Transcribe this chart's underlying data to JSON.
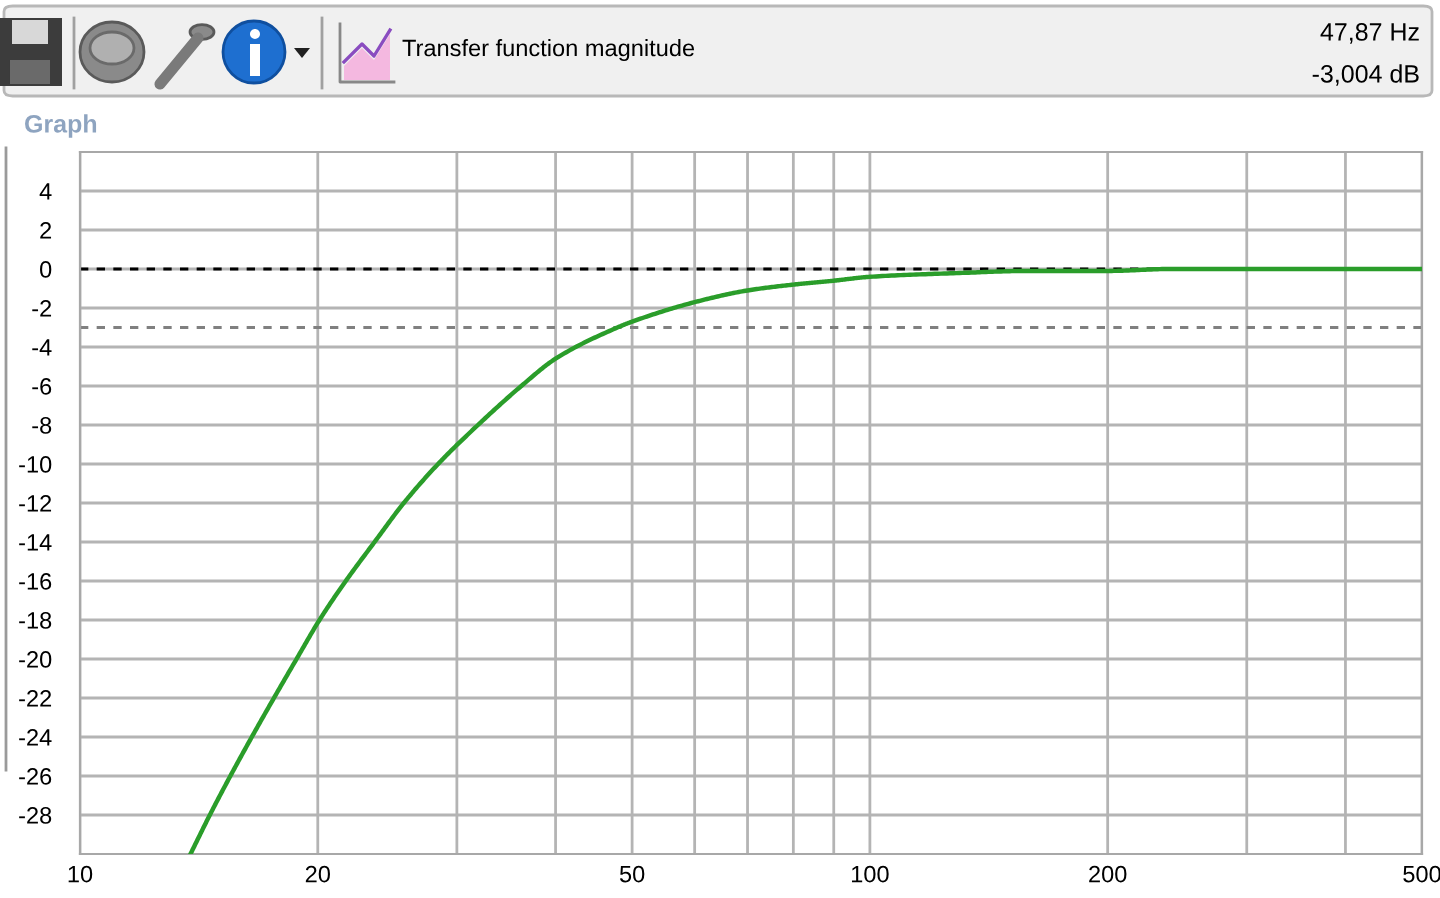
{
  "chart_data": {
    "type": "line",
    "title": "Transfer function magnitude",
    "annotations": [
      "Graph",
      "47,87 Hz",
      "-3,004 dB"
    ],
    "x": [
      13.8,
      14.6,
      15.5,
      16.5,
      17.6,
      18.8,
      20.1,
      21.7,
      23.6,
      25.7,
      28.4,
      31.9,
      36.2,
      40,
      47.9,
      50,
      60,
      70,
      80,
      90,
      100,
      131,
      158,
      200,
      240,
      500
    ],
    "series": [
      {
        "color": "#2a9d2a",
        "values": [
          -30,
          -28,
          -26,
          -24,
          -22,
          -20,
          -18,
          -16,
          -14,
          -12,
          -10,
          -8,
          -6,
          -4.6,
          -3.0,
          -2.7,
          -1.7,
          -1.1,
          -0.8,
          -0.6,
          -0.4,
          -0.2,
          -0.1,
          -0.1,
          0,
          0
        ]
      }
    ],
    "log": "x",
    "xlim": [
      10,
      500
    ],
    "xticks": [
      10,
      20,
      {
        "value": 30,
        "label": null
      },
      {
        "value": 40,
        "label": null
      },
      50,
      {
        "value": 60,
        "label": null
      },
      {
        "value": 70,
        "label": null
      },
      {
        "value": 80,
        "label": null
      },
      {
        "value": 90,
        "label": null
      },
      100,
      200,
      {
        "value": 300,
        "label": null
      },
      {
        "value": 400,
        "label": null
      },
      500
    ],
    "ylim": [
      -30,
      6
    ],
    "yticks": [
      -28,
      -26,
      -24,
      -22,
      -20,
      -18,
      -16,
      -14,
      -12,
      -10,
      -8,
      -6,
      -4,
      -2,
      0,
      2,
      4
    ],
    "grid": true,
    "ref_lines": [
      {
        "axis": "y",
        "value": 0,
        "color": "#000000",
        "line_style": "dashed"
      },
      {
        "axis": "y",
        "value": -3,
        "color": "#808080",
        "line_style": "dashed"
      }
    ]
  }
}
